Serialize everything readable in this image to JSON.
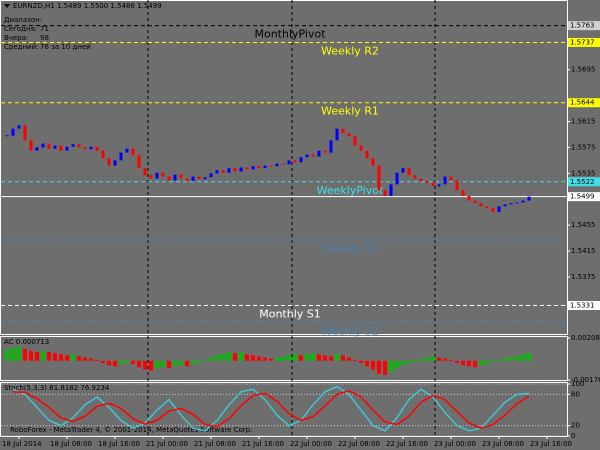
{
  "chart_data": [
    {
      "type": "candlestick",
      "header": "EURNZD,H1  1.5489 1.5500 1.5486 1.5499",
      "info": [
        {
          "label": "Диапазон:"
        },
        {
          "label": "Сегодня:",
          "value": "71"
        },
        {
          "label": "Вчера:",
          "value": "98"
        },
        {
          "label": "Средний:",
          "value": "76 за 10 дней"
        }
      ],
      "up_color": "#0000ff",
      "down_color": "#ff0000",
      "values": [
        1.5593,
        1.5604,
        1.5609,
        1.5586,
        1.557,
        1.5575,
        1.5581,
        1.5573,
        1.5578,
        1.557,
        1.5576,
        1.558,
        1.5575,
        1.5572,
        1.5576,
        1.557,
        1.5558,
        1.5547,
        1.5555,
        1.5567,
        1.5573,
        1.5563,
        1.5543,
        1.5532,
        1.5527,
        1.5536,
        1.553,
        1.5524,
        1.5533,
        1.5527,
        1.5523,
        1.553,
        1.5526,
        1.5529,
        1.5535,
        1.554,
        1.5536,
        1.5543,
        1.5538,
        1.5544,
        1.5541,
        1.5546,
        1.5543,
        1.5547,
        1.5546,
        1.555,
        1.5549,
        1.5555,
        1.5552,
        1.556,
        1.5564,
        1.5561,
        1.557,
        1.5567,
        1.5586,
        1.5604,
        1.5597,
        1.5592,
        1.5578,
        1.557,
        1.5558,
        1.5547,
        1.5509,
        1.55,
        1.5518,
        1.5536,
        1.5543,
        1.5532,
        1.5527,
        1.5523,
        1.552,
        1.5515,
        1.5518,
        1.553,
        1.5524,
        1.5509,
        1.55,
        1.5493,
        1.5489,
        1.5484,
        1.5481,
        1.5475,
        1.5484,
        1.5487,
        1.5489,
        1.549,
        1.5493,
        1.5499
      ],
      "current_price": 1.5499,
      "ylim": [
        1.5287,
        1.5801
      ],
      "yticks": [
        1.5375,
        1.5415,
        1.5455,
        1.5535,
        1.5575,
        1.5615,
        1.5695
      ],
      "xlim": [
        -1,
        93
      ],
      "xticks": [
        {
          "value": 2,
          "label": "18 Jul 2014"
        },
        {
          "value": 10,
          "label": "18 Jul 08:00"
        },
        {
          "value": 18,
          "label": "18 Jul 16:00"
        },
        {
          "value": 26,
          "label": "21 Jul 00:00"
        },
        {
          "value": 34,
          "label": "21 Jul 08:00"
        },
        {
          "value": 42,
          "label": "21 Jul 16:00"
        },
        {
          "value": 50,
          "label": "22 Jul 00:00"
        },
        {
          "value": 58,
          "label": "22 Jul 08:00"
        },
        {
          "value": 66,
          "label": "22 Jul 16:00"
        },
        {
          "value": 74,
          "label": "23 Jul 00:00"
        },
        {
          "value": 82,
          "label": "23 Jul 08:00"
        },
        {
          "value": 90,
          "label": "23 Jul 16:00"
        }
      ],
      "levels": [
        {
          "label": "MonthlyPivot",
          "value": 1.5763,
          "color": "#000000",
          "price_box": true
        },
        {
          "label": "Weekly R2",
          "value": 1.5737,
          "color": "#ffff00",
          "price_box": true
        },
        {
          "label": "Weekly R1",
          "value": 1.5644,
          "color": "#ffff00",
          "price_box": true
        },
        {
          "label": "WeeklyPivot",
          "value": 1.5522,
          "color": "#40e0e8",
          "price_box": true
        },
        {
          "label": "Weekly S1",
          "value": 1.5432,
          "color": "#4682b4",
          "price_box": false
        },
        {
          "label": "Monthly S1",
          "value": 1.5331,
          "color": "#ffffff",
          "price_box": true
        },
        {
          "label": "Weekly S2",
          "value": 1.5305,
          "color": "#4682b4",
          "price_box": false
        }
      ],
      "footer": "RoboForex - MetaTrader 4, © 2001-2014, MetaQuotes Software Corp."
    },
    {
      "type": "bar",
      "title": "AC 0.000713",
      "up_color": "#00c000",
      "down_color": "#ff0000",
      "values": [
        0.001,
        0.0012,
        0.0013,
        0.0011,
        0.0009,
        0.0008,
        0.0009,
        0.0008,
        0.0007,
        0.0006,
        0.0005,
        0.0006,
        0.0004,
        0.0003,
        0.0002,
        0.0001,
        -0.0002,
        -0.0004,
        -0.0005,
        -0.0003,
        -0.0002,
        -0.0003,
        -0.0006,
        -0.0008,
        -0.0009,
        -0.0007,
        -0.0006,
        -0.0007,
        -0.0005,
        -0.0004,
        -0.0005,
        -0.0003,
        -0.0002,
        0.0001,
        0.0003,
        0.0005,
        0.0006,
        0.0008,
        0.0007,
        0.0008,
        0.0006,
        0.0005,
        0.0004,
        0.0003,
        0.0002,
        0.0003,
        0.0004,
        0.0005,
        0.0006,
        0.0005,
        0.0006,
        0.0007,
        0.0006,
        0.0005,
        0.0004,
        0.0006,
        0.0005,
        0.0003,
        0.0001,
        -0.0002,
        -0.0005,
        -0.0008,
        -0.0012,
        -0.0013,
        -0.001,
        -0.0007,
        -0.0004,
        -0.0003,
        -0.0001,
        0.0002,
        0.0003,
        0.0004,
        0.0003,
        0.0002,
        0.0001,
        -0.0002,
        -0.0004,
        -0.0005,
        -0.0006,
        -0.0004,
        -0.0003,
        -0.0001,
        0.0001,
        0.0002,
        0.0003,
        0.0004,
        0.0006,
        0.0007
      ],
      "ylim": [
        -0.00176,
        0.002083
      ],
      "yticks": [
        -0.00176,
        0.002083
      ]
    },
    {
      "type": "line",
      "title": "Stoch(5,3,3) 81.8182 76.9234",
      "series": [
        {
          "color": "#40c8d0",
          "values": [
            90,
            80,
            55,
            30,
            20,
            35,
            60,
            75,
            55,
            30,
            15,
            25,
            50,
            70,
            40,
            15,
            10,
            30,
            60,
            85,
            90,
            70,
            40,
            20,
            30,
            60,
            85,
            95,
            80,
            50,
            20,
            10,
            35,
            70,
            90,
            75,
            45,
            20,
            10,
            15,
            40,
            65,
            80,
            81.8182
          ]
        },
        {
          "color": "#ff0000",
          "values": [
            85,
            84,
            72,
            55,
            35,
            28,
            38,
            57,
            63,
            53,
            33,
            23,
            30,
            48,
            53,
            42,
            22,
            18,
            33,
            58,
            78,
            82,
            67,
            43,
            30,
            37,
            58,
            80,
            87,
            75,
            50,
            27,
            22,
            38,
            65,
            78,
            70,
            47,
            25,
            15,
            22,
            40,
            62,
            76.9234
          ]
        }
      ],
      "ylim": [
        0,
        100
      ],
      "yticks": [
        0,
        20,
        80,
        100
      ],
      "grid": true
    }
  ]
}
